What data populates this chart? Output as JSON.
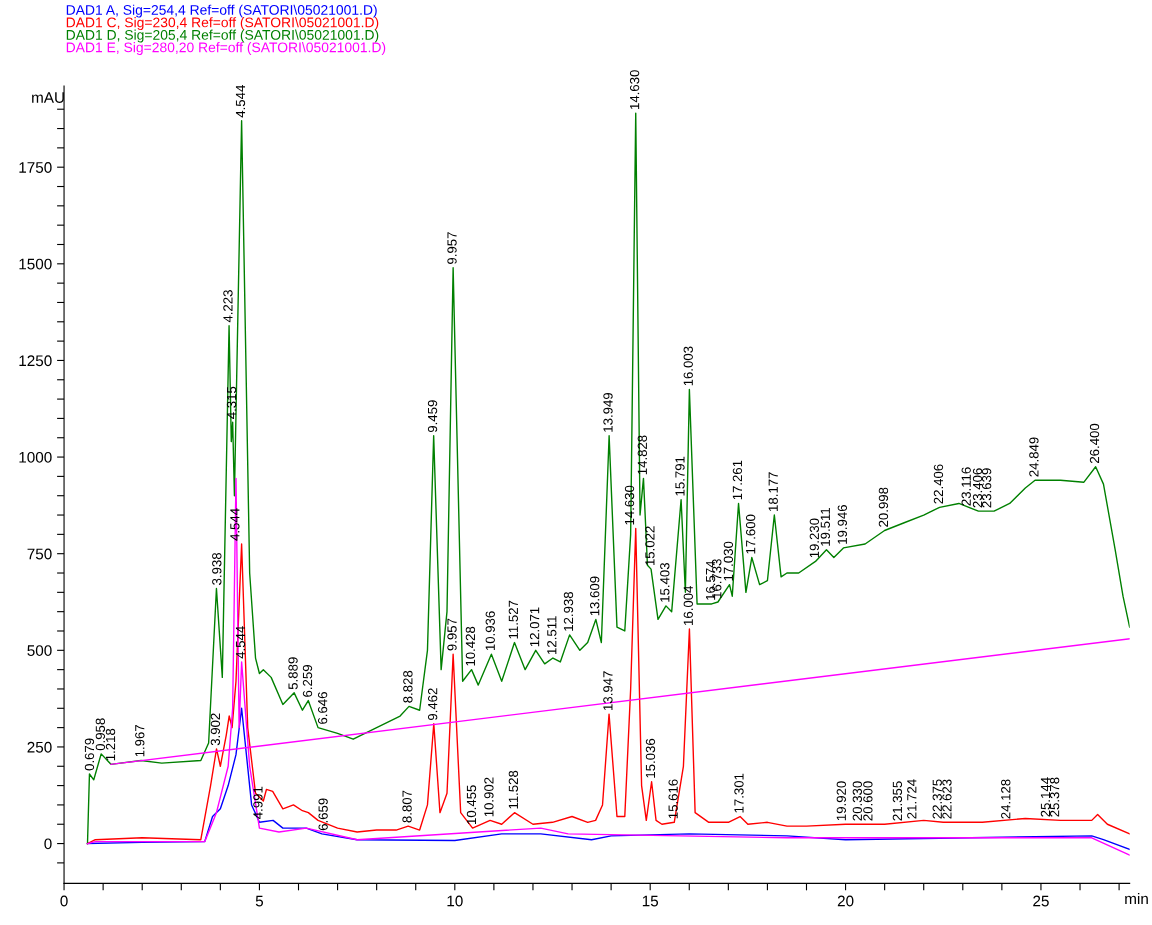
{
  "chart_data": {
    "type": "line",
    "ylabel": "mAU",
    "xlabel": "min",
    "xlim": [
      0,
      27.27
    ],
    "ylim": [
      -103,
      1960
    ],
    "xticks": [
      0,
      {
        "value": 1,
        "label": null
      },
      {
        "value": 2,
        "label": null
      },
      {
        "value": 3,
        "label": null
      },
      {
        "value": 4,
        "label": null
      },
      5,
      {
        "value": 6,
        "label": null
      },
      {
        "value": 7,
        "label": null
      },
      {
        "value": 8,
        "label": null
      },
      {
        "value": 9,
        "label": null
      },
      10,
      {
        "value": 11,
        "label": null
      },
      {
        "value": 12,
        "label": null
      },
      {
        "value": 13,
        "label": null
      },
      {
        "value": 14,
        "label": null
      },
      15,
      {
        "value": 16,
        "label": null
      },
      {
        "value": 17,
        "label": null
      },
      {
        "value": 18,
        "label": null
      },
      {
        "value": 19,
        "label": null
      },
      20,
      {
        "value": 21,
        "label": null
      },
      {
        "value": 22,
        "label": null
      },
      {
        "value": 23,
        "label": null
      },
      {
        "value": 24,
        "label": null
      },
      25,
      {
        "value": 26,
        "label": null
      },
      {
        "value": 27,
        "label": null
      }
    ],
    "yticks": [
      {
        "value": -50,
        "label": null
      },
      0,
      {
        "value": 50,
        "label": null
      },
      {
        "value": 100,
        "label": null
      },
      {
        "value": 150,
        "label": null
      },
      {
        "value": 200,
        "label": null
      },
      250,
      {
        "value": 300,
        "label": null
      },
      {
        "value": 350,
        "label": null
      },
      {
        "value": 400,
        "label": null
      },
      {
        "value": 450,
        "label": null
      },
      500,
      {
        "value": 550,
        "label": null
      },
      {
        "value": 600,
        "label": null
      },
      {
        "value": 650,
        "label": null
      },
      {
        "value": 700,
        "label": null
      },
      750,
      {
        "value": 800,
        "label": null
      },
      {
        "value": 850,
        "label": null
      },
      {
        "value": 900,
        "label": null
      },
      {
        "value": 950,
        "label": null
      },
      1000,
      {
        "value": 1050,
        "label": null
      },
      {
        "value": 1100,
        "label": null
      },
      {
        "value": 1150,
        "label": null
      },
      {
        "value": 1200,
        "label": null
      },
      1250,
      {
        "value": 1300,
        "label": null
      },
      {
        "value": 1350,
        "label": null
      },
      {
        "value": 1400,
        "label": null
      },
      {
        "value": 1450,
        "label": null
      },
      1500,
      {
        "value": 1550,
        "label": null
      },
      {
        "value": 1600,
        "label": null
      },
      {
        "value": 1650,
        "label": null
      },
      {
        "value": 1700,
        "label": null
      },
      1750,
      {
        "value": 1800,
        "label": null
      },
      {
        "value": 1850,
        "label": null
      },
      {
        "value": 1900,
        "label": null
      }
    ],
    "grid": false,
    "line_style": "solid",
    "marker": "none",
    "series": [
      {
        "name": "DAD1 A, Sig=254,4 Ref=off (SATORI\\05021001.D)",
        "color": "#0000ff",
        "x": [
          0.6,
          2,
          3.6,
          3.8,
          4.0,
          4.2,
          4.4,
          4.544,
          4.8,
          5.0,
          5.35,
          5.6,
          6.2,
          6.6,
          7.5,
          10,
          11.2,
          12.2,
          13.5,
          14.0,
          16.0,
          18.5,
          20,
          26.3,
          26.6,
          27.27
        ],
        "values": [
          0,
          3,
          5,
          70,
          90,
          150,
          230,
          350,
          100,
          55,
          60,
          40,
          40,
          25,
          10,
          8,
          25,
          25,
          10,
          20,
          25,
          20,
          10,
          20,
          10,
          -15
        ]
      },
      {
        "name": "DAD1 C, Sig=230,4 Ref=off (SATORI\\05021001.D)",
        "color": "#ff0000",
        "x": [
          0.6,
          0.8,
          2,
          3.5,
          3.75,
          3.902,
          4.0,
          4.15,
          4.226,
          4.3,
          4.4,
          4.544,
          4.7,
          4.9,
          5.1,
          5.179,
          5.339,
          5.6,
          5.871,
          6.1,
          6.252,
          6.5,
          7.0,
          7.5,
          8.0,
          8.5,
          8.807,
          9.1,
          9.3,
          9.462,
          9.62,
          9.8,
          9.957,
          10.15,
          10.455,
          10.902,
          11.2,
          11.528,
          12.0,
          12.5,
          13.0,
          13.4,
          13.603,
          13.78,
          13.947,
          14.15,
          14.35,
          14.5,
          14.63,
          14.78,
          14.9,
          15.036,
          15.15,
          15.3,
          15.616,
          15.85,
          16.004,
          16.15,
          16.5,
          17.0,
          17.301,
          17.5,
          18.0,
          18.5,
          19.0,
          20.0,
          21.0,
          22.0,
          22.5,
          23.5,
          24.6,
          25.5,
          26.3,
          26.45,
          26.7,
          27.27
        ],
        "values": [
          0,
          10,
          15,
          10,
          150,
          245,
          200,
          280,
          330,
          300,
          420,
          775,
          300,
          130,
          110,
          140,
          135,
          90,
          100,
          85,
          80,
          60,
          40,
          30,
          35,
          35,
          45,
          35,
          100,
          310,
          80,
          130,
          490,
          80,
          40,
          60,
          50,
          80,
          50,
          55,
          70,
          55,
          60,
          100,
          335,
          70,
          70,
          400,
          815,
          150,
          60,
          160,
          60,
          50,
          55,
          200,
          555,
          80,
          55,
          55,
          70,
          50,
          55,
          45,
          45,
          50,
          50,
          60,
          55,
          55,
          65,
          60,
          60,
          75,
          50,
          25
        ]
      },
      {
        "name": "DAD1 D, Sig=205,4 Ref=off (SATORI\\05021001.D)",
        "color": "#008000",
        "x": [
          0.6,
          0.65,
          0.76,
          0.95,
          1.2,
          1.97,
          2.5,
          3.5,
          3.7,
          3.9,
          4.05,
          4.223,
          4.28,
          4.315,
          4.36,
          4.544,
          4.75,
          4.9,
          5.0,
          5.1,
          5.3,
          5.6,
          5.889,
          6.1,
          6.25,
          6.5,
          7.0,
          7.4,
          8.0,
          8.6,
          8.828,
          9.1,
          9.3,
          9.459,
          9.65,
          9.8,
          9.957,
          10.2,
          10.428,
          10.6,
          10.936,
          11.2,
          11.527,
          11.8,
          12.071,
          12.3,
          12.511,
          12.7,
          12.938,
          13.2,
          13.4,
          13.609,
          13.75,
          13.949,
          14.15,
          14.35,
          14.5,
          14.63,
          14.74,
          14.828,
          14.93,
          15.022,
          15.2,
          15.403,
          15.55,
          15.791,
          15.9,
          16.003,
          16.2,
          16.574,
          16.733,
          17.03,
          17.1,
          17.261,
          17.45,
          17.6,
          17.8,
          18.0,
          18.177,
          18.35,
          18.5,
          18.8,
          19.23,
          19.511,
          19.7,
          19.946,
          20.5,
          20.998,
          21.5,
          22.0,
          22.406,
          22.9,
          23.4,
          23.8,
          24.2,
          24.6,
          24.849,
          25.5,
          26.1,
          26.4,
          26.6,
          26.9,
          27.1,
          27.27
        ],
        "values": [
          0,
          180,
          165,
          232,
          205,
          215,
          208,
          215,
          260,
          660,
          430,
          1340,
          1040,
          1090,
          900,
          1870,
          700,
          480,
          440,
          450,
          430,
          360,
          390,
          345,
          370,
          300,
          285,
          270,
          300,
          330,
          355,
          345,
          500,
          1055,
          450,
          600,
          1490,
          420,
          450,
          410,
          490,
          420,
          520,
          450,
          500,
          465,
          480,
          470,
          540,
          500,
          520,
          580,
          520,
          1055,
          560,
          550,
          800,
          1890,
          850,
          945,
          720,
          710,
          580,
          615,
          600,
          890,
          650,
          1175,
          620,
          620,
          625,
          670,
          640,
          880,
          650,
          740,
          670,
          680,
          850,
          690,
          700,
          700,
          730,
          760,
          740,
          765,
          775,
          810,
          830,
          850,
          870,
          880,
          860,
          860,
          880,
          920,
          940,
          940,
          935,
          975,
          930,
          760,
          640,
          560
        ]
      },
      {
        "name": "DAD1 E, Sig=280,20 Ref=off (SATORI\\05021001.D)",
        "color": "#ff00ff",
        "x": [
          0.6,
          0.8,
          3.6,
          3.9,
          4.2,
          4.315,
          4.4,
          4.48,
          4.544,
          4.75,
          5.0,
          5.5,
          6.2,
          7.5,
          12.2,
          12.9,
          18.5,
          26.3,
          27.27
        ],
        "values": [
          0,
          5,
          5,
          80,
          200,
          350,
          945,
          300,
          470,
          200,
          40,
          30,
          40,
          10,
          40,
          25,
          15,
          15,
          -30
        ]
      },
      {
        "color": "#ff00ff",
        "x": [
          1.2,
          27.27
        ],
        "values": [
          205,
          530
        ]
      }
    ],
    "annotations": [
      {
        "text": "0.679",
        "x": 0.679,
        "y": 180
      },
      {
        "text": "0.958",
        "x": 0.958,
        "y": 232
      },
      {
        "text": "1.218",
        "x": 1.218,
        "y": 205
      },
      {
        "text": "1.967",
        "x": 1.967,
        "y": 215
      },
      {
        "text": "3.938",
        "x": 3.938,
        "y": 660
      },
      {
        "text": "4.223",
        "x": 4.223,
        "y": 1340
      },
      {
        "text": "4.315",
        "x": 4.315,
        "y": 1090
      },
      {
        "text": "4.544",
        "x": 4.544,
        "y": 1870
      },
      {
        "text": "5.889",
        "x": 5.889,
        "y": 390
      },
      {
        "text": "6.259",
        "x": 6.259,
        "y": 370
      },
      {
        "text": "6.646",
        "x": 6.646,
        "y": 300
      },
      {
        "text": "8.828",
        "x": 8.828,
        "y": 355
      },
      {
        "text": "9.459",
        "x": 9.459,
        "y": 1055
      },
      {
        "text": "9.957",
        "x": 9.957,
        "y": 1490
      },
      {
        "text": "10.428",
        "x": 10.428,
        "y": 450
      },
      {
        "text": "10.936",
        "x": 10.936,
        "y": 490
      },
      {
        "text": "11.527",
        "x": 11.527,
        "y": 520
      },
      {
        "text": "12.071",
        "x": 12.071,
        "y": 500
      },
      {
        "text": "12.511",
        "x": 12.511,
        "y": 480
      },
      {
        "text": "12.938",
        "x": 12.938,
        "y": 540
      },
      {
        "text": "13.609",
        "x": 13.609,
        "y": 580
      },
      {
        "text": "13.949",
        "x": 13.949,
        "y": 1055
      },
      {
        "text": "14.630",
        "x": 14.63,
        "y": 1890
      },
      {
        "text": "14.828",
        "x": 14.828,
        "y": 945
      },
      {
        "text": "15.022",
        "x": 15.022,
        "y": 710
      },
      {
        "text": "15.403",
        "x": 15.403,
        "y": 615
      },
      {
        "text": "15.791",
        "x": 15.791,
        "y": 890
      },
      {
        "text": "16.003",
        "x": 16.003,
        "y": 1175
      },
      {
        "text": "16.574",
        "x": 16.574,
        "y": 620
      },
      {
        "text": "16.733",
        "x": 16.733,
        "y": 625
      },
      {
        "text": "17.030",
        "x": 17.03,
        "y": 670
      },
      {
        "text": "17.261",
        "x": 17.261,
        "y": 880
      },
      {
        "text": "17.600",
        "x": 17.6,
        "y": 740
      },
      {
        "text": "18.177",
        "x": 18.177,
        "y": 850
      },
      {
        "text": "19.230",
        "x": 19.23,
        "y": 730
      },
      {
        "text": "19.511",
        "x": 19.511,
        "y": 760
      },
      {
        "text": "19.946",
        "x": 19.946,
        "y": 765
      },
      {
        "text": "20.998",
        "x": 20.998,
        "y": 810
      },
      {
        "text": "22.406",
        "x": 22.406,
        "y": 870
      },
      {
        "text": "23.116",
        "x": 23.116,
        "y": 865
      },
      {
        "text": "23.406",
        "x": 23.406,
        "y": 860
      },
      {
        "text": "23.639",
        "x": 23.639,
        "y": 860
      },
      {
        "text": "24.849",
        "x": 24.849,
        "y": 940
      },
      {
        "text": "26.400",
        "x": 26.4,
        "y": 975
      },
      {
        "text": "3.902",
        "x": 3.902,
        "y": 245
      },
      {
        "text": "4.544",
        "x": 4.4,
        "y": 775
      },
      {
        "text": "8.807",
        "x": 8.807,
        "y": 45
      },
      {
        "text": "9.462",
        "x": 9.462,
        "y": 310
      },
      {
        "text": "9.957",
        "x": 9.957,
        "y": 490
      },
      {
        "text": "10.455",
        "x": 10.455,
        "y": 40
      },
      {
        "text": "10.902",
        "x": 10.902,
        "y": 60
      },
      {
        "text": "11.528",
        "x": 11.528,
        "y": 80
      },
      {
        "text": "13.947",
        "x": 13.947,
        "y": 335
      },
      {
        "text": "14.630",
        "x": 14.5,
        "y": 815
      },
      {
        "text": "15.036",
        "x": 15.036,
        "y": 160
      },
      {
        "text": "16.004",
        "x": 16.004,
        "y": 555
      },
      {
        "text": "4.544",
        "x": 4.544,
        "y": 470
      },
      {
        "text": "4.991",
        "x": 4.991,
        "y": 55
      },
      {
        "text": "6.659",
        "x": 6.659,
        "y": 25
      },
      {
        "text": "15.616",
        "x": 15.616,
        "y": 55
      },
      {
        "text": "17.301",
        "x": 17.301,
        "y": 70
      },
      {
        "text": "19.920",
        "x": 19.92,
        "y": 50
      },
      {
        "text": "20.330",
        "x": 20.33,
        "y": 50
      },
      {
        "text": "20.600",
        "x": 20.6,
        "y": 50
      },
      {
        "text": "21.355",
        "x": 21.355,
        "y": 50
      },
      {
        "text": "21.724",
        "x": 21.724,
        "y": 55
      },
      {
        "text": "22.375",
        "x": 22.375,
        "y": 55
      },
      {
        "text": "22.623",
        "x": 22.623,
        "y": 55
      },
      {
        "text": "24.128",
        "x": 24.128,
        "y": 55
      },
      {
        "text": "25.144",
        "x": 25.144,
        "y": 60
      },
      {
        "text": "25.378",
        "x": 25.378,
        "y": 60
      }
    ]
  }
}
